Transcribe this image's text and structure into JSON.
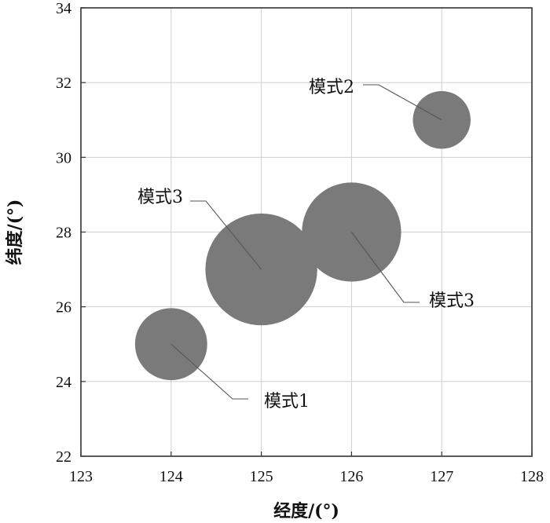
{
  "chart_data": {
    "type": "scatter",
    "title": "",
    "xlabel": "经度/(°)",
    "ylabel": "纬度/(°)",
    "xlim": [
      123,
      128
    ],
    "ylim": [
      22,
      34
    ],
    "xticks": [
      "123",
      "124",
      "125",
      "126",
      "127",
      "128"
    ],
    "yticks": [
      "22",
      "24",
      "26",
      "28",
      "30",
      "32",
      "34"
    ],
    "grid": true,
    "bubble_color": "#7a7a7a",
    "points": [
      {
        "x": 124,
        "y": 25,
        "size_deg_lon": 0.4
      },
      {
        "x": 125,
        "y": 27,
        "size_deg_lon": 0.62
      },
      {
        "x": 126,
        "y": 28,
        "size_deg_lon": 0.55
      },
      {
        "x": 127,
        "y": 31,
        "size_deg_lon": 0.32
      }
    ],
    "annotations": [
      {
        "text": "模式1",
        "point": 0
      },
      {
        "text": "模式3",
        "point": 1
      },
      {
        "text": "模式3",
        "point": 2
      },
      {
        "text": "模式2",
        "point": 3
      }
    ]
  }
}
